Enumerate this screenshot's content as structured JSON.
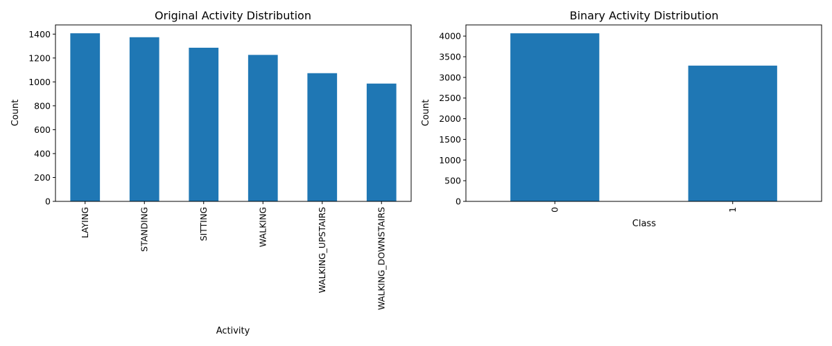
{
  "chart_data": [
    {
      "type": "bar",
      "title": "Original Activity Distribution",
      "xlabel": "Activity",
      "ylabel": "Count",
      "categories": [
        "LAYING",
        "STANDING",
        "SITTING",
        "WALKING",
        "WALKING_UPSTAIRS",
        "WALKING_DOWNSTAIRS"
      ],
      "values": [
        1407,
        1374,
        1286,
        1226,
        1073,
        986
      ],
      "ylim": [
        0,
        1477
      ],
      "yticks": [
        0,
        200,
        400,
        600,
        800,
        1000,
        1200,
        1400
      ],
      "grid": false,
      "color": "#1f77b4"
    },
    {
      "type": "bar",
      "title": "Binary Activity Distribution",
      "xlabel": "Class",
      "ylabel": "Count",
      "categories": [
        "0",
        "1"
      ],
      "values": [
        4067,
        3285
      ],
      "ylim": [
        0,
        4270
      ],
      "yticks": [
        0,
        500,
        1000,
        1500,
        2000,
        2500,
        3000,
        3500,
        4000
      ],
      "grid": false,
      "color": "#1f77b4"
    }
  ]
}
